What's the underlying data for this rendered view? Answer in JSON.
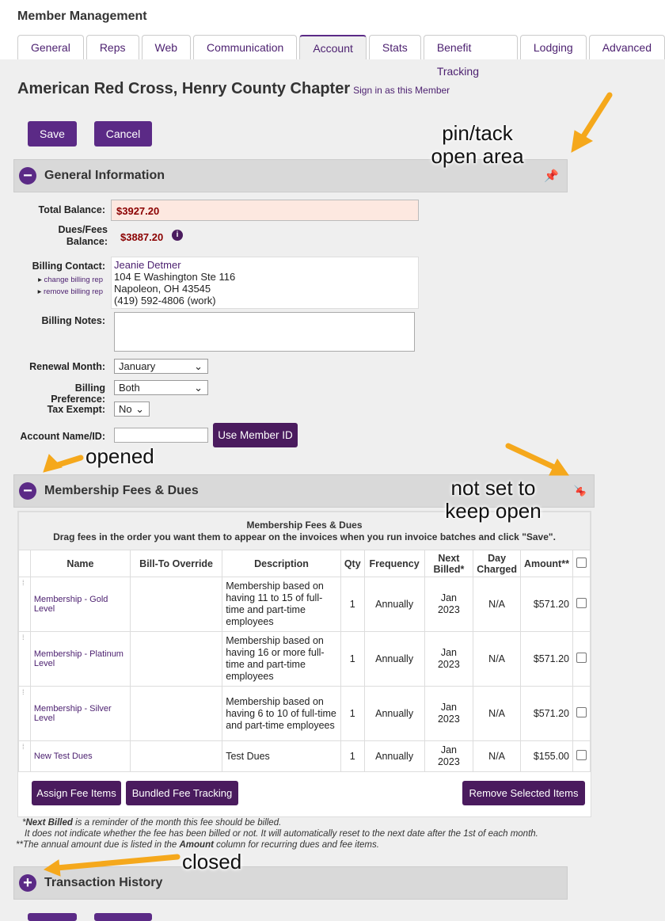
{
  "app": {
    "title": "Member Management"
  },
  "tabs": [
    "General",
    "Reps",
    "Web",
    "Communication",
    "Account",
    "Stats",
    "Benefit Tracking",
    "Lodging",
    "Advanced"
  ],
  "active_tab": "Account",
  "member": {
    "name": "American Red Cross, Henry County Chapter",
    "sign_in": "Sign in as this Member"
  },
  "buttons": {
    "save": "Save",
    "cancel": "Cancel",
    "use_member_id": "Use Member ID",
    "assign": "Assign Fee Items",
    "bundled": "Bundled Fee Tracking",
    "remove": "Remove Selected Items"
  },
  "general": {
    "title": "General Information",
    "total_balance_label": "Total Balance:",
    "total_balance": "$3927.20",
    "dues_label": "Dues/Fees Balance:",
    "dues_balance": "$3887.20",
    "billing_contact_label": "Billing Contact:",
    "change_rep": "change billing rep",
    "remove_rep": "remove billing rep",
    "contact_name": "Jeanie Detmer",
    "contact_addr1": "104 E Washington Ste 116",
    "contact_addr2": "Napoleon, OH 43545",
    "contact_phone": "(419) 592-4806 (work)",
    "billing_notes_label": "Billing Notes:",
    "billing_notes": "",
    "renewal_label": "Renewal Month:",
    "renewal": "January",
    "pref_label": "Billing Preference:",
    "pref": "Both",
    "tax_label": "Tax Exempt:",
    "tax": "No",
    "account_label": "Account Name/ID:",
    "account": ""
  },
  "fees": {
    "title": "Membership Fees & Dues",
    "table_title": "Membership Fees & Dues",
    "instructions": "Drag fees in the order you want them to appear on the invoices when you run invoice batches and click \"Save\".",
    "headers": [
      "Name",
      "Bill-To Override",
      "Description",
      "Qty",
      "Frequency",
      "Next Billed*",
      "Day Charged",
      "Amount**"
    ],
    "rows": [
      {
        "name": "Membership - Gold Level",
        "override": "",
        "description": "Membership based on having 11 to 15 of full-time and part-time employees",
        "qty": "1",
        "frequency": "Annually",
        "next": "Jan 2023",
        "day": "N/A",
        "amount": "$571.20"
      },
      {
        "name": "Membership - Platinum Level",
        "override": "",
        "description": "Membership based on having 16 or more full-time and part-time employees",
        "qty": "1",
        "frequency": "Annually",
        "next": "Jan 2023",
        "day": "N/A",
        "amount": "$571.20"
      },
      {
        "name": "Membership - Silver Level",
        "override": "",
        "description": "Membership based on having 6 to 10 of full-time and part-time employees",
        "qty": "1",
        "frequency": "Annually",
        "next": "Jan 2023",
        "day": "N/A",
        "amount": "$571.20"
      },
      {
        "name": "New Test Dues",
        "override": "",
        "description": "Test Dues",
        "qty": "1",
        "frequency": "Annually",
        "next": "Jan 2023",
        "day": "N/A",
        "amount": "$155.00"
      }
    ],
    "note1_bold": "Next Billed",
    "note1": " is a reminder of the month this fee should be billed.",
    "note2": "It does not indicate whether the fee has been billed or not. It will automatically reset to the next date after the 1st of each month.",
    "note3a": "**The annual amount due is listed in the ",
    "note3_bold": "Amount",
    "note3b": " column for recurring dues and fee items."
  },
  "transactions": {
    "title": "Transaction History"
  },
  "annotations": {
    "pin": "pin/tack open area",
    "opened": "opened",
    "not_set": "not set  to keep open",
    "closed": "closed"
  },
  "colors": {
    "accent": "#5b2a86",
    "arrow": "#f5a81c",
    "balance": "#8b0000"
  }
}
